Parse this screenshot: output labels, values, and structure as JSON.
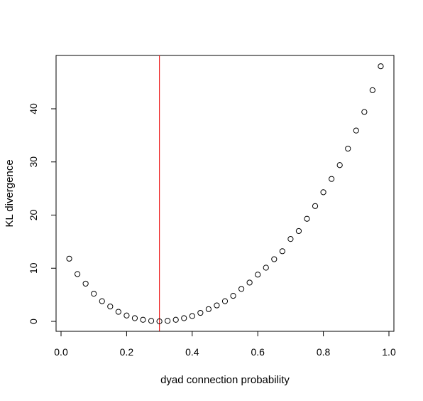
{
  "chart_data": {
    "type": "scatter",
    "title": "",
    "xlabel": "dyad connection probability",
    "ylabel": "KL divergence",
    "xlim": [
      0.0,
      1.0
    ],
    "ylim": [
      0,
      50
    ],
    "x_ticks": [
      0.0,
      0.2,
      0.4,
      0.6,
      0.8,
      1.0
    ],
    "x_tick_labels": [
      "0.0",
      "0.2",
      "0.4",
      "0.6",
      "0.8",
      "1.0"
    ],
    "y_ticks": [
      0,
      10,
      20,
      30,
      40
    ],
    "y_tick_labels": [
      "0",
      "10",
      "20",
      "30",
      "40"
    ],
    "grid": false,
    "marker": "open-circle",
    "marker_color": "#000000",
    "reference_line": {
      "orientation": "vertical",
      "x": 0.3,
      "color": "#ee2222"
    },
    "x": [
      0.025,
      0.05,
      0.075,
      0.1,
      0.125,
      0.15,
      0.175,
      0.2,
      0.225,
      0.25,
      0.275,
      0.3,
      0.325,
      0.35,
      0.375,
      0.4,
      0.425,
      0.45,
      0.475,
      0.5,
      0.525,
      0.55,
      0.575,
      0.6,
      0.625,
      0.65,
      0.675,
      0.7,
      0.725,
      0.75,
      0.775,
      0.8,
      0.825,
      0.85,
      0.875,
      0.9,
      0.925,
      0.95,
      0.975
    ],
    "y": [
      11.8,
      8.9,
      7.1,
      5.2,
      3.8,
      2.8,
      1.8,
      1.1,
      0.6,
      0.3,
      0.1,
      0.0,
      0.1,
      0.3,
      0.6,
      1.0,
      1.6,
      2.3,
      3.0,
      3.8,
      4.8,
      6.1,
      7.3,
      8.8,
      10.1,
      11.7,
      13.2,
      15.5,
      17.0,
      19.3,
      21.7,
      24.3,
      26.8,
      29.4,
      32.5,
      35.9,
      39.4,
      43.5,
      48.0
    ]
  }
}
